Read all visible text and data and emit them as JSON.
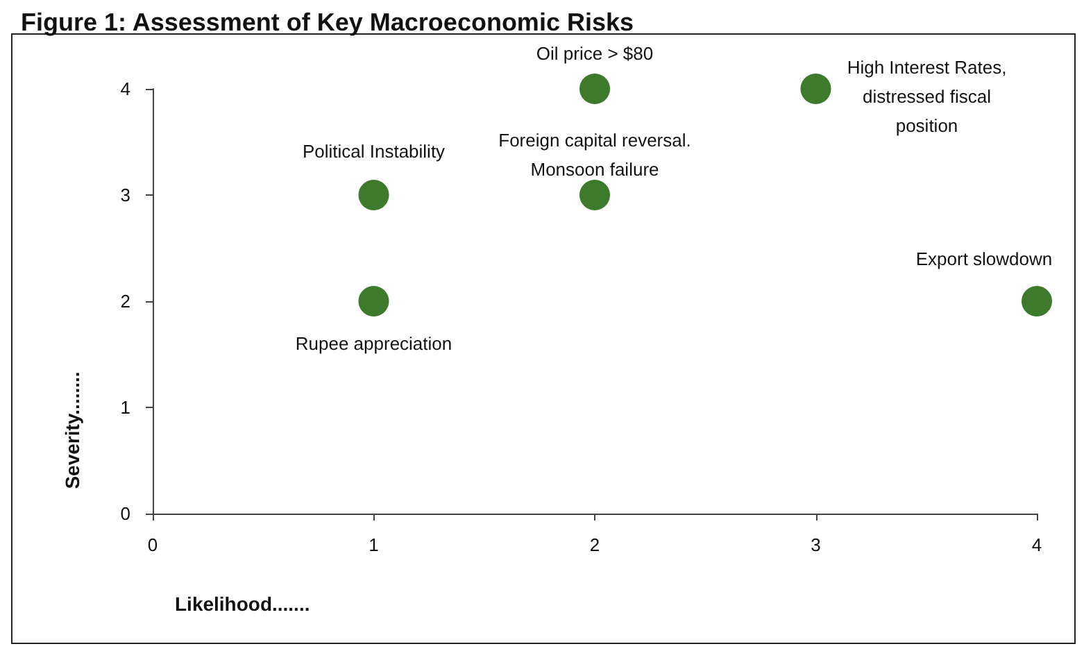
{
  "chart_data": {
    "type": "scatter",
    "title": "Figure 1: Assessment of Key Macroeconomic Risks",
    "xlabel": "Likelihood.......",
    "ylabel": "Severity........",
    "x": [
      2,
      3,
      1,
      2,
      4,
      1
    ],
    "series": [
      {
        "color": "#3d7a2c",
        "values": [
          4,
          4,
          3,
          3,
          2,
          2
        ]
      }
    ],
    "annotations": [
      {
        "text": "Oil price > $80",
        "x": 2,
        "y": 4
      },
      {
        "text": "High Interest Rates,\ndistressed fiscal\nposition",
        "x": 3,
        "y": 4
      },
      {
        "text": "Political Instability",
        "x": 1,
        "y": 3
      },
      {
        "text": "Foreign capital reversal.\nMonsoon failure",
        "x": 2,
        "y": 3
      },
      {
        "text": "Export slowdown",
        "x": 4,
        "y": 2
      },
      {
        "text": "Rupee appreciation",
        "x": 1,
        "y": 2
      }
    ],
    "xlim": [
      0,
      4
    ],
    "xticks": [
      0,
      1,
      2,
      3,
      4
    ],
    "ylim": [
      0,
      4
    ],
    "yticks": [
      0,
      1,
      2,
      3,
      4
    ],
    "grid": false,
    "marker": "circle"
  }
}
